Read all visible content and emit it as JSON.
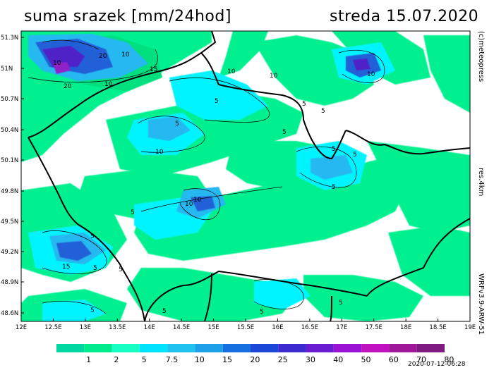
{
  "header": {
    "title_left": "suma srazek [mm/24hod]",
    "title_right": "streda 15.07.2020"
  },
  "side_labels": {
    "brand": "(c)meteopress",
    "resolution": "res.4km",
    "model": "WRFv3.9-ARW-51"
  },
  "footer": {
    "timestamp": "2020-07-12-06:28"
  },
  "map": {
    "lat_labels": [
      "51.3N",
      "51N",
      "50.7N",
      "50.4N",
      "50.1N",
      "49.8N",
      "49.5N",
      "49.2N",
      "48.9N",
      "48.6N"
    ],
    "lon_labels": [
      "12E",
      "12.5E",
      "13E",
      "13.5E",
      "14E",
      "14.5E",
      "15E",
      "15.5E",
      "16E",
      "16.5E",
      "17E",
      "17.5E",
      "18E",
      "18.5E",
      "19E"
    ],
    "contour_labels": [
      "10",
      "20",
      "10",
      "15",
      "20",
      "10",
      "10",
      "5",
      "10",
      "5",
      "5",
      "5",
      "5",
      "10",
      "10",
      "5",
      "10",
      "5",
      "5",
      "5",
      "5",
      "5",
      "10",
      "15",
      "5",
      "5",
      "5",
      "5",
      "5"
    ]
  },
  "legend": {
    "values": [
      "1",
      "2",
      "5",
      "7.5",
      "10",
      "15",
      "20",
      "25",
      "30",
      "40",
      "50",
      "60",
      "70",
      "80"
    ],
    "colors": [
      "#00d6a0",
      "#00ec8c",
      "#17ffc2",
      "#00e4ff",
      "#20c3f0",
      "#1ea0e8",
      "#1770e0",
      "#1c48d8",
      "#3a2ad0",
      "#6a1cd2",
      "#9a12d4",
      "#c012c0",
      "#a0189a",
      "#7f1a80"
    ]
  },
  "colors": {
    "light_green": "#00f090",
    "green_mid": "#00e07e",
    "cyan": "#00f4ff",
    "blue_light": "#28b8f0",
    "blue": "#2060d8",
    "violet": "#5020c8",
    "purple": "#9020c8",
    "border": "#000000"
  }
}
